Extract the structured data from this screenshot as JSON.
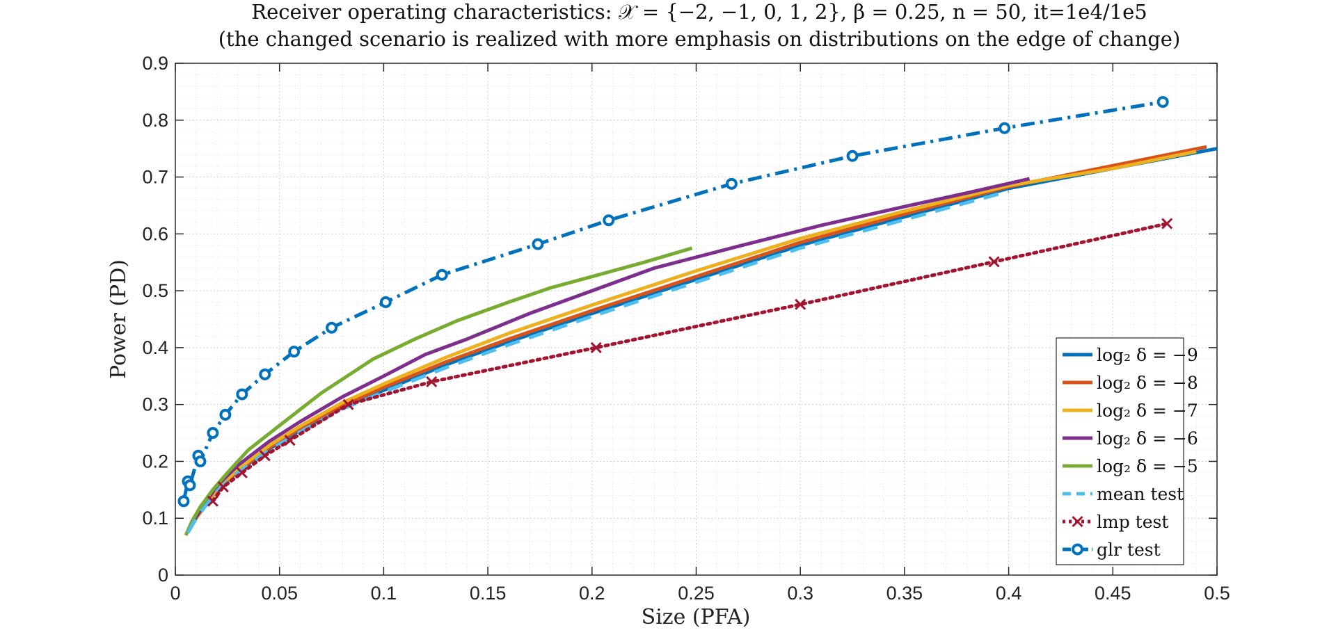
{
  "chart_data": {
    "type": "line",
    "title": "Receiver operating characteristics: 𝒳 = {−2, −1, 0, 1, 2}, β = 0.25, n = 50, it=1e4/1e5",
    "subtitle": "(the changed scenario is realized with more emphasis on distributions on the edge of change)",
    "xlabel": "Size (PFA)",
    "ylabel": "Power (PD)",
    "xlim": [
      0,
      0.5
    ],
    "ylim": [
      0,
      0.9
    ],
    "xticks": [
      0,
      0.05,
      0.1,
      0.15,
      0.2,
      0.25,
      0.3,
      0.35,
      0.4,
      0.45,
      0.5
    ],
    "xtick_labels": [
      "0",
      "0.05",
      "0.1",
      "0.15",
      "0.2",
      "0.25",
      "0.3",
      "0.35",
      "0.4",
      "0.45",
      "0.5"
    ],
    "yticks": [
      0,
      0.1,
      0.2,
      0.3,
      0.4,
      0.5,
      0.6,
      0.7,
      0.8,
      0.9
    ],
    "ytick_labels": [
      "0",
      "0.1",
      "0.2",
      "0.3",
      "0.4",
      "0.5",
      "0.6",
      "0.7",
      "0.8",
      "0.9"
    ],
    "grid": true,
    "minor_grid": true,
    "legend_position": "bottom-right",
    "series": [
      {
        "name": "log₂ δ = −9",
        "color": "#0072BD",
        "style": "solid",
        "marker": "none",
        "x": [
          0.006,
          0.01,
          0.015,
          0.02,
          0.03,
          0.045,
          0.06,
          0.08,
          0.1,
          0.13,
          0.16,
          0.2,
          0.25,
          0.3,
          0.35,
          0.4,
          0.45,
          0.5
        ],
        "y": [
          0.075,
          0.1,
          0.125,
          0.15,
          0.182,
          0.222,
          0.255,
          0.295,
          0.325,
          0.37,
          0.41,
          0.46,
          0.52,
          0.58,
          0.63,
          0.68,
          0.715,
          0.75
        ]
      },
      {
        "name": "log₂ δ = −8",
        "color": "#D95319",
        "style": "solid",
        "marker": "none",
        "x": [
          0.006,
          0.01,
          0.015,
          0.02,
          0.03,
          0.045,
          0.06,
          0.08,
          0.1,
          0.13,
          0.16,
          0.2,
          0.25,
          0.3,
          0.35,
          0.4,
          0.45,
          0.495
        ],
        "y": [
          0.075,
          0.1,
          0.125,
          0.15,
          0.183,
          0.224,
          0.258,
          0.298,
          0.33,
          0.375,
          0.415,
          0.465,
          0.525,
          0.585,
          0.635,
          0.683,
          0.72,
          0.753
        ]
      },
      {
        "name": "log₂ δ = −7",
        "color": "#EDB120",
        "style": "solid",
        "marker": "none",
        "x": [
          0.006,
          0.01,
          0.015,
          0.02,
          0.03,
          0.045,
          0.06,
          0.08,
          0.1,
          0.13,
          0.16,
          0.2,
          0.25,
          0.3,
          0.35,
          0.4,
          0.45,
          0.49
        ],
        "y": [
          0.075,
          0.1,
          0.126,
          0.152,
          0.186,
          0.228,
          0.262,
          0.303,
          0.336,
          0.383,
          0.425,
          0.475,
          0.535,
          0.592,
          0.64,
          0.685,
          0.715,
          0.745
        ]
      },
      {
        "name": "log₂ δ = −6",
        "color": "#7E2F8E",
        "style": "solid",
        "marker": "none",
        "x": [
          0.006,
          0.01,
          0.015,
          0.02,
          0.03,
          0.045,
          0.06,
          0.08,
          0.1,
          0.12,
          0.14,
          0.17,
          0.2,
          0.23,
          0.27,
          0.31,
          0.35,
          0.38,
          0.41
        ],
        "y": [
          0.075,
          0.102,
          0.13,
          0.157,
          0.193,
          0.235,
          0.27,
          0.313,
          0.35,
          0.388,
          0.415,
          0.46,
          0.5,
          0.54,
          0.578,
          0.615,
          0.648,
          0.672,
          0.697
        ]
      },
      {
        "name": "log₂ δ = −5",
        "color": "#77AC30",
        "style": "solid",
        "marker": "none",
        "x": [
          0.005,
          0.008,
          0.012,
          0.018,
          0.025,
          0.035,
          0.05,
          0.07,
          0.095,
          0.115,
          0.135,
          0.16,
          0.18,
          0.2,
          0.225,
          0.248
        ],
        "y": [
          0.07,
          0.095,
          0.12,
          0.15,
          0.18,
          0.22,
          0.263,
          0.32,
          0.38,
          0.415,
          0.447,
          0.48,
          0.505,
          0.525,
          0.55,
          0.575
        ]
      },
      {
        "name": "mean test",
        "color": "#4DBEEE",
        "style": "dashed",
        "marker": "none",
        "x": [
          0.006,
          0.01,
          0.015,
          0.02,
          0.03,
          0.045,
          0.06,
          0.08,
          0.1,
          0.13,
          0.16,
          0.2,
          0.25,
          0.3,
          0.35,
          0.4
        ],
        "y": [
          0.075,
          0.1,
          0.124,
          0.148,
          0.18,
          0.22,
          0.252,
          0.292,
          0.322,
          0.365,
          0.405,
          0.455,
          0.515,
          0.575,
          0.625,
          0.675
        ]
      },
      {
        "name": "lmp test",
        "color": "#A2142F",
        "style": "dotted",
        "marker": "x",
        "x": [
          0.018,
          0.023,
          0.032,
          0.043,
          0.055,
          0.083,
          0.123,
          0.202,
          0.3,
          0.393,
          0.476
        ],
        "y": [
          0.13,
          0.155,
          0.18,
          0.21,
          0.237,
          0.3,
          0.34,
          0.4,
          0.476,
          0.551,
          0.618
        ]
      },
      {
        "name": "glr test",
        "color": "#0072BD",
        "style": "dashdot",
        "marker": "o",
        "x": [
          0.004,
          0.006,
          0.007,
          0.011,
          0.012,
          0.018,
          0.024,
          0.032,
          0.043,
          0.057,
          0.075,
          0.101,
          0.128,
          0.174,
          0.208,
          0.267,
          0.325,
          0.398,
          0.474
        ],
        "y": [
          0.13,
          0.165,
          0.158,
          0.21,
          0.2,
          0.25,
          0.282,
          0.318,
          0.353,
          0.393,
          0.435,
          0.48,
          0.528,
          0.582,
          0.624,
          0.688,
          0.737,
          0.786,
          0.832
        ]
      }
    ]
  }
}
